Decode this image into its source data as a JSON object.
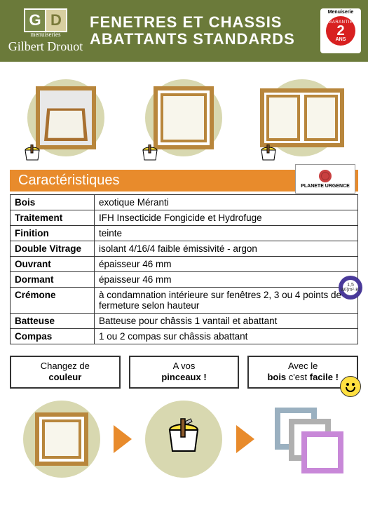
{
  "header": {
    "logo_sub": "menuiseries",
    "logo_name": "Gilbert Drouot",
    "title_line1": "FENETRES ET CHASSIS",
    "title_line2": "ABATTANTS STANDARDS",
    "warranty_label": "Menuiserie",
    "warranty_top": "GARANTIE",
    "warranty_years": "2",
    "warranty_unit": "ANS"
  },
  "planete_label": "PLANETE URGENCE",
  "section_title": "Caractéristiques",
  "specs": [
    {
      "label": "Bois",
      "value": "exotique Méranti"
    },
    {
      "label": "Traitement",
      "value": "IFH Insecticide Fongicide et Hydrofuge"
    },
    {
      "label": "Finition",
      "value": "teinte"
    },
    {
      "label": "Double Vitrage",
      "value": "isolant 4/16/4 faible émissivité - argon"
    },
    {
      "label": "Ouvrant",
      "value": "épaisseur 46 mm"
    },
    {
      "label": "Dormant",
      "value": "épaisseur 46 mm"
    },
    {
      "label": "Crémone",
      "value": "à condamnation intérieure sur fenêtres 2, 3 ou 4 points de fermeture selon hauteur"
    },
    {
      "label": "Batteuse",
      "value": "Batteuse pour châssis 1 vantail et abattant"
    },
    {
      "label": "Compas",
      "value": "1 ou 2 compas sur châssis abattant"
    }
  ],
  "watt_badge": "1,5 W/(m²·K)",
  "callouts": [
    {
      "pre": "Changez de ",
      "strong": "couleur"
    },
    {
      "pre": "A vos ",
      "strong": "pinceaux !"
    },
    {
      "pre": "Avec le ",
      "strong": "bois",
      "post": " c'est ",
      "strong2": "facile !"
    }
  ],
  "colors": {
    "header_bg": "#6b7a3a",
    "orange": "#e88b2c",
    "wood": "#b8863c",
    "circle": "#d8d8b0",
    "red": "#d82020"
  }
}
